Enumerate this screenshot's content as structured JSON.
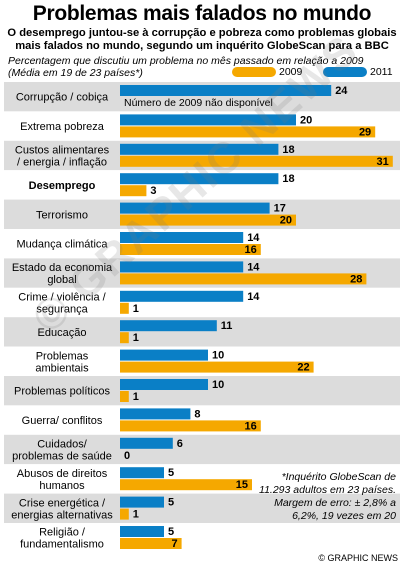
{
  "header": {
    "title": "Problemas mais falados no mundo",
    "subtitle": "O desemprego juntou-se à corrupção e pobreza como problemas globais mais falados no mundo, segundo um inquérito GlobeScan para a BBC",
    "note_line1": "Percentagem que discutiu um problema no mês passado em relação a 2009",
    "note_line2": "(Média em 19 de 23 países*)"
  },
  "legend": [
    {
      "label": "2009",
      "color": "#F5A800"
    },
    {
      "label": "2011",
      "color": "#0A7FC6"
    }
  ],
  "colors": {
    "bar_2009": "#F5A800",
    "bar_2011": "#0A7FC6",
    "band_odd": "#DCDCDC",
    "band_even": "#FFFFFF",
    "bold_labels": "#000000"
  },
  "chart_data": {
    "type": "bar",
    "orientation": "horizontal",
    "categories": [
      "Corrupção / cobiça",
      "Extrema pobreza",
      "Custos alimentares / energia / inflação",
      "Desemprego",
      "Terrorismo",
      "Mudança climática",
      "Estado da economia global",
      "Crime / violência / segurança",
      "Educação",
      "Problemas ambientais",
      "Problemas políticos",
      "Guerra/ conflitos",
      "Cuidados/ problemas de saúde",
      "Abusos de direitos humanos",
      "Crise energética / energias alternativas",
      "Religião / fundamentalismo"
    ],
    "category_lines": [
      [
        "Corrupção / cobiça"
      ],
      [
        "Extrema pobreza"
      ],
      [
        "Custos alimentares",
        "/ energia / inflação"
      ],
      [
        "Desemprego"
      ],
      [
        "Terrorismo"
      ],
      [
        "Mudança climática"
      ],
      [
        "Estado da economia",
        "global"
      ],
      [
        "Crime / violência /",
        "segurança"
      ],
      [
        "Educação"
      ],
      [
        "Problemas",
        "ambientais"
      ],
      [
        "Problemas políticos"
      ],
      [
        "Guerra/ conflitos"
      ],
      [
        "Cuidados/",
        "problemas de saúde"
      ],
      [
        "Abusos de direitos",
        "humanos"
      ],
      [
        "Crise energética /",
        "energias alternativas"
      ],
      [
        "Religião /",
        "fundamentalismo"
      ]
    ],
    "series": [
      {
        "name": "2011",
        "values": [
          24,
          20,
          18,
          18,
          17,
          14,
          14,
          14,
          11,
          10,
          10,
          8,
          6,
          5,
          5,
          5
        ]
      },
      {
        "name": "2009",
        "values": [
          null,
          29,
          31,
          3,
          20,
          16,
          28,
          1,
          1,
          22,
          1,
          16,
          0,
          15,
          1,
          7
        ]
      }
    ],
    "annotations": [
      "Número de 2009 não disponível"
    ],
    "emphasized_category": "Desemprego",
    "xlim": [
      0,
      31
    ]
  },
  "footnote": "*Inquérito GlobeScan de 11.293 adultos em 23 países. Margem de erro: ± 2,8% a 6,2%, 19 vezes em 20",
  "credit": "© GRAPHIC NEWS",
  "watermark": "© GRAPHIC NEWS"
}
